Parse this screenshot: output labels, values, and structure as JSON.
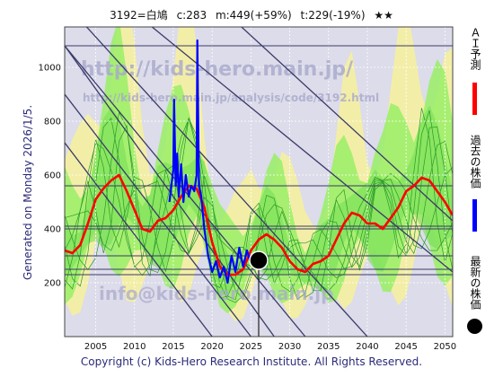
{
  "header": {
    "code": "3192=白鳩",
    "current": "c:283",
    "max": "m:449(+59%)",
    "target": "t:229(-19%)",
    "stars": "★★"
  },
  "side_label": "Generated on Monday 2026/1/5.",
  "footer": "Copyright (c) Kids-Hero Research Institute. All Rights Reserved.",
  "watermark": {
    "url_main": "http://kids-hero.main.jp/",
    "url_code": "http://kids-hero.main.jp/analysis/code/3192.html",
    "email": "info@kids-hero.main.jp"
  },
  "legend": {
    "ai_forecast": "ＡＩ予測",
    "past_price": "過去の株価",
    "latest_price": "最新の株価"
  },
  "colors": {
    "forecast": "#ff0000",
    "past": "#0000ff",
    "latest": "#000000",
    "green_band": "#99ee66",
    "yellow_band": "#f5f0a0",
    "trend_line": "#3a3a6a",
    "background": "#d8d8e8"
  },
  "chart_data": {
    "type": "line",
    "xlim": [
      2001,
      2051
    ],
    "ylim": [
      0,
      1150
    ],
    "x_ticks": [
      2005,
      2010,
      2015,
      2020,
      2025,
      2030,
      2035,
      2040,
      2045,
      2050
    ],
    "y_ticks": [
      200,
      400,
      600,
      800,
      1000
    ],
    "latest_point": {
      "x": 2026,
      "y": 283
    },
    "horizontal_levels": [
      1080,
      560,
      410,
      400,
      300,
      250,
      230
    ],
    "series": [
      {
        "name": "ＡＩ予測",
        "x": [
          2001,
          2002,
          2003,
          2004,
          2005,
          2006,
          2007,
          2008,
          2009,
          2010,
          2011,
          2012,
          2013,
          2014,
          2015,
          2016,
          2017,
          2018,
          2019,
          2020,
          2021,
          2022,
          2023,
          2024,
          2025,
          2026,
          2027,
          2028,
          2029,
          2030,
          2031,
          2032,
          2033,
          2034,
          2035,
          2036,
          2037,
          2038,
          2039,
          2040,
          2041,
          2042,
          2043,
          2044,
          2045,
          2046,
          2047,
          2048,
          2049,
          2050,
          2051
        ],
        "values": [
          320,
          310,
          340,
          420,
          510,
          550,
          580,
          600,
          540,
          470,
          400,
          390,
          430,
          440,
          470,
          520,
          560,
          550,
          480,
          350,
          260,
          230,
          230,
          250,
          320,
          360,
          380,
          360,
          330,
          280,
          250,
          240,
          270,
          280,
          300,
          360,
          420,
          460,
          450,
          420,
          420,
          400,
          440,
          480,
          540,
          560,
          590,
          580,
          540,
          500,
          450
        ]
      },
      {
        "name": "過去の株価",
        "x": [
          2014.5,
          2015,
          2015.1,
          2015.3,
          2015.5,
          2015.7,
          2016,
          2016.3,
          2016.6,
          2017,
          2017.3,
          2017.7,
          2018,
          2018.1,
          2018.3,
          2018.6,
          2019,
          2019.5,
          2020,
          2020.5,
          2021,
          2021.5,
          2022,
          2022.5,
          2023,
          2023.5,
          2024,
          2024.5,
          2025,
          2025.5,
          2026
        ],
        "values": [
          500,
          620,
          880,
          560,
          680,
          520,
          640,
          500,
          600,
          520,
          560,
          540,
          600,
          1100,
          560,
          520,
          400,
          300,
          240,
          280,
          220,
          260,
          200,
          300,
          240,
          330,
          260,
          320,
          270,
          300,
          283
        ]
      }
    ]
  }
}
